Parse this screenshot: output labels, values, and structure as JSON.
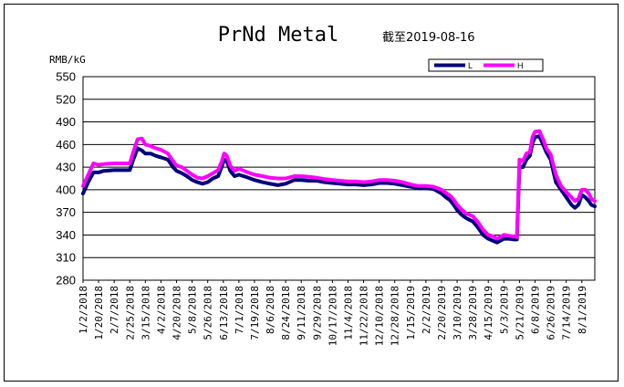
{
  "chart_data": {
    "type": "line",
    "title": "PrNd Metal",
    "subtitle": "截至2019-08-16",
    "ylabel": "RMB/kG",
    "xlabel": "",
    "ylim": [
      280,
      550
    ],
    "yticks": [
      280,
      310,
      340,
      370,
      400,
      430,
      460,
      490,
      520,
      550
    ],
    "xlim": [
      "2018-01-02",
      "2019-08-16"
    ],
    "xticks": [
      "1/2/2018",
      "1/20/2018",
      "2/7/2018",
      "2/25/2018",
      "3/15/2018",
      "4/2/2018",
      "4/20/2018",
      "5/8/2018",
      "5/26/2018",
      "6/13/2018",
      "7/1/2018",
      "7/19/2018",
      "8/6/2018",
      "8/24/2018",
      "9/11/2018",
      "9/29/2018",
      "10/17/2018",
      "11/4/2018",
      "11/22/2018",
      "12/10/2018",
      "12/28/2018",
      "1/15/2019",
      "2/2/2019",
      "2/20/2019",
      "3/10/2019",
      "3/28/2019",
      "4/15/2019",
      "5/3/2019",
      "5/21/2019",
      "6/8/2019",
      "6/26/2019",
      "7/14/2019",
      "8/1/2019"
    ],
    "grid": "horizontal",
    "legend": "top-right",
    "series": [
      {
        "name": "L",
        "color": "#00007a",
        "x": [
          "2018-01-02",
          "2018-01-08",
          "2018-01-14",
          "2018-01-20",
          "2018-01-26",
          "2018-02-07",
          "2018-02-25",
          "2018-03-01",
          "2018-03-06",
          "2018-03-11",
          "2018-03-15",
          "2018-03-21",
          "2018-03-27",
          "2018-04-02",
          "2018-04-10",
          "2018-04-16",
          "2018-04-20",
          "2018-04-26",
          "2018-05-02",
          "2018-05-08",
          "2018-05-14",
          "2018-05-20",
          "2018-05-26",
          "2018-06-01",
          "2018-06-07",
          "2018-06-11",
          "2018-06-14",
          "2018-06-17",
          "2018-06-21",
          "2018-06-26",
          "2018-07-01",
          "2018-07-09",
          "2018-07-19",
          "2018-07-28",
          "2018-08-06",
          "2018-08-15",
          "2018-08-24",
          "2018-09-03",
          "2018-09-11",
          "2018-09-20",
          "2018-09-29",
          "2018-10-08",
          "2018-10-17",
          "2018-10-26",
          "2018-11-04",
          "2018-11-13",
          "2018-11-22",
          "2018-12-01",
          "2018-12-10",
          "2018-12-19",
          "2018-12-28",
          "2019-01-06",
          "2019-01-15",
          "2019-01-24",
          "2019-02-02",
          "2019-02-11",
          "2019-02-20",
          "2019-02-25",
          "2019-03-02",
          "2019-03-06",
          "2019-03-10",
          "2019-03-15",
          "2019-03-21",
          "2019-03-28",
          "2019-04-03",
          "2019-04-09",
          "2019-04-15",
          "2019-04-21",
          "2019-04-25",
          "2019-05-03",
          "2019-05-09",
          "2019-05-15",
          "2019-05-18",
          "2019-05-21",
          "2019-05-25",
          "2019-05-29",
          "2019-06-02",
          "2019-06-05",
          "2019-06-08",
          "2019-06-13",
          "2019-06-18",
          "2019-06-21",
          "2019-06-26",
          "2019-07-02",
          "2019-07-08",
          "2019-07-14",
          "2019-07-20",
          "2019-07-24",
          "2019-07-28",
          "2019-08-01",
          "2019-08-05",
          "2019-08-09",
          "2019-08-12",
          "2019-08-16"
        ],
        "values": [
          395,
          410,
          423,
          423,
          425,
          426,
          426,
          440,
          455,
          452,
          448,
          448,
          445,
          443,
          440,
          430,
          425,
          422,
          418,
          413,
          410,
          408,
          410,
          415,
          418,
          430,
          440,
          438,
          425,
          418,
          420,
          417,
          413,
          410,
          408,
          406,
          408,
          413,
          413,
          412,
          412,
          410,
          409,
          408,
          407,
          407,
          406,
          407,
          409,
          409,
          408,
          406,
          404,
          402,
          402,
          401,
          395,
          390,
          386,
          380,
          373,
          367,
          362,
          358,
          350,
          340,
          335,
          332,
          330,
          335,
          335,
          334,
          334,
          430,
          430,
          440,
          445,
          462,
          470,
          471,
          458,
          450,
          440,
          410,
          400,
          390,
          380,
          376,
          380,
          393,
          390,
          385,
          380,
          378
        ]
      },
      {
        "name": "H",
        "color": "#ff00ff",
        "x": [
          "2018-01-02",
          "2018-01-08",
          "2018-01-14",
          "2018-01-20",
          "2018-01-26",
          "2018-02-07",
          "2018-02-25",
          "2018-03-01",
          "2018-03-06",
          "2018-03-11",
          "2018-03-15",
          "2018-03-21",
          "2018-03-27",
          "2018-04-02",
          "2018-04-10",
          "2018-04-16",
          "2018-04-20",
          "2018-04-26",
          "2018-05-02",
          "2018-05-08",
          "2018-05-14",
          "2018-05-20",
          "2018-05-26",
          "2018-06-01",
          "2018-06-07",
          "2018-06-11",
          "2018-06-14",
          "2018-06-17",
          "2018-06-21",
          "2018-06-26",
          "2018-07-01",
          "2018-07-09",
          "2018-07-19",
          "2018-07-28",
          "2018-08-06",
          "2018-08-15",
          "2018-08-24",
          "2018-09-03",
          "2018-09-11",
          "2018-09-20",
          "2018-09-29",
          "2018-10-08",
          "2018-10-17",
          "2018-10-26",
          "2018-11-04",
          "2018-11-13",
          "2018-11-22",
          "2018-12-01",
          "2018-12-10",
          "2018-12-19",
          "2018-12-28",
          "2019-01-06",
          "2019-01-15",
          "2019-01-24",
          "2019-02-02",
          "2019-02-11",
          "2019-02-20",
          "2019-02-25",
          "2019-03-02",
          "2019-03-06",
          "2019-03-10",
          "2019-03-15",
          "2019-03-21",
          "2019-03-28",
          "2019-04-03",
          "2019-04-09",
          "2019-04-15",
          "2019-04-21",
          "2019-04-25",
          "2019-05-03",
          "2019-05-09",
          "2019-05-15",
          "2019-05-18",
          "2019-05-21",
          "2019-05-25",
          "2019-05-29",
          "2019-06-02",
          "2019-06-05",
          "2019-06-08",
          "2019-06-13",
          "2019-06-18",
          "2019-06-21",
          "2019-06-26",
          "2019-07-02",
          "2019-07-08",
          "2019-07-14",
          "2019-07-20",
          "2019-07-24",
          "2019-07-28",
          "2019-08-01",
          "2019-08-05",
          "2019-08-09",
          "2019-08-12",
          "2019-08-16"
        ],
        "values": [
          405,
          420,
          435,
          433,
          434,
          435,
          435,
          450,
          467,
          468,
          460,
          458,
          455,
          453,
          448,
          438,
          432,
          430,
          425,
          420,
          416,
          415,
          418,
          422,
          426,
          437,
          448,
          445,
          432,
          425,
          428,
          424,
          420,
          418,
          416,
          415,
          415,
          418,
          418,
          417,
          416,
          414,
          413,
          412,
          411,
          411,
          410,
          411,
          413,
          413,
          412,
          410,
          407,
          405,
          405,
          404,
          400,
          396,
          392,
          387,
          380,
          374,
          368,
          365,
          357,
          347,
          340,
          338,
          335,
          340,
          339,
          338,
          337,
          440,
          438,
          448,
          450,
          470,
          477,
          478,
          465,
          455,
          447,
          420,
          405,
          397,
          390,
          385,
          388,
          400,
          400,
          395,
          388,
          385
        ]
      }
    ]
  }
}
